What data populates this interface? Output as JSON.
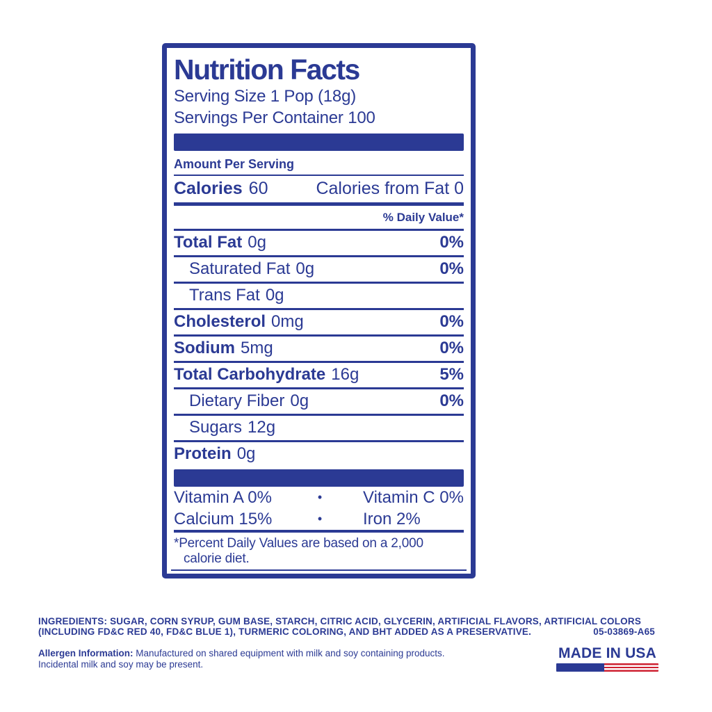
{
  "colors": {
    "blue": "#2b3a94",
    "red": "#ce2030"
  },
  "label": {
    "title": "Nutrition Facts",
    "serving_size": "Serving Size 1 Pop (18g)",
    "servings_per_container": "Servings Per Container 100",
    "amount_per_serving": "Amount Per Serving",
    "calories_label": "Calories",
    "calories_value": "60",
    "calories_from_fat": "Calories from Fat 0",
    "daily_value_header": "% Daily Value*",
    "bullet": "•",
    "nutrients": [
      {
        "name": "Total Fat",
        "amount": "0g",
        "dv": "0%"
      },
      {
        "name": "Saturated Fat",
        "amount": "0g",
        "dv": "0%"
      },
      {
        "name": "Trans Fat",
        "amount": "0g",
        "dv": ""
      },
      {
        "name": "Cholesterol",
        "amount": "0mg",
        "dv": "0%"
      },
      {
        "name": "Sodium",
        "amount": "5mg",
        "dv": "0%"
      },
      {
        "name": "Total Carbohydrate",
        "amount": "16g",
        "dv": "5%"
      },
      {
        "name": "Dietary Fiber",
        "amount": "0g",
        "dv": "0%"
      },
      {
        "name": "Sugars",
        "amount": "12g",
        "dv": ""
      },
      {
        "name": "Protein",
        "amount": "0g",
        "dv": ""
      }
    ],
    "vitamins": [
      {
        "left": "Vitamin A 0%",
        "right": "Vitamin C 0%"
      },
      {
        "left": "Calcium 15%",
        "right": "Iron 2%"
      }
    ],
    "footnote_line1": "*Percent Daily Values are based on a 2,000",
    "footnote_line2": "calorie diet."
  },
  "footer": {
    "ingredients_line1": "INGREDIENTS: SUGAR, CORN SYRUP, GUM BASE, STARCH, CITRIC ACID, GLYCERIN, ARTIFICIAL FLAVORS, ARTIFICIAL COLORS",
    "ingredients_line2": "(INCLUDING FD&C RED 40, FD&C BLUE 1), TURMERIC COLORING, AND BHT ADDED AS A PRESERVATIVE.",
    "product_code": "05-03869-A65",
    "allergen_label": "Allergen Information:",
    "allergen_line1": "Manufactured on shared equipment with milk and soy containing products.",
    "allergen_line2": "Incidental milk and soy may be present.",
    "made_in_usa": "MADE IN USA"
  }
}
